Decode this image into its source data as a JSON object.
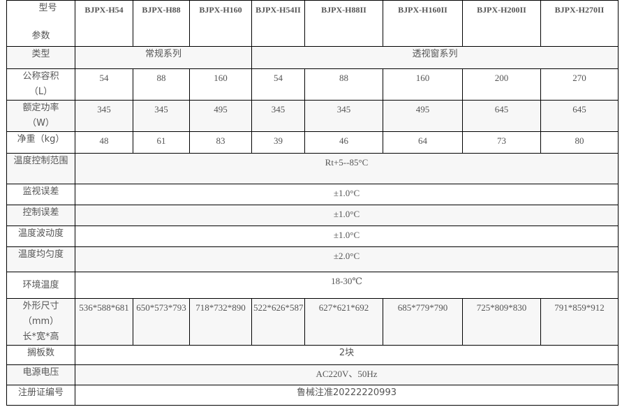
{
  "header": {
    "corner_top": "型号",
    "corner_bottom": "参数",
    "models": [
      "BJPX-H54",
      "BJPX-H88",
      "BJPX-H160",
      "BJPX-H54II",
      "BJPX-H88II",
      "BJPX-H160II",
      "BJPX-H200II",
      "BJPX-H270II"
    ]
  },
  "rows": {
    "type": {
      "label": "类型",
      "series_a": "常规系列",
      "series_b": "透视窗系列"
    },
    "volume": {
      "label": "公称容积",
      "unit": "（L）",
      "values": [
        "54",
        "88",
        "160",
        "54",
        "88",
        "160",
        "200",
        "270"
      ]
    },
    "power": {
      "label": "额定功率",
      "unit": "（W）",
      "values": [
        "345",
        "345",
        "495",
        "345",
        "345",
        "495",
        "645",
        "645"
      ]
    },
    "weight": {
      "label": "净重（kg）",
      "values": [
        "48",
        "61",
        "83",
        "39",
        "46",
        "64",
        "73",
        "80"
      ]
    },
    "temp_range": {
      "label": "温度控制范围",
      "value": "Rt+5--85°C"
    },
    "monitor_error": {
      "label": "监视误差",
      "value": "±1.0°C"
    },
    "control_error": {
      "label": "控制误差",
      "value": "±1.0°C"
    },
    "fluctuation": {
      "label": "温度波动度",
      "value": "±1.0°C"
    },
    "uniformity": {
      "label": "温度均匀度",
      "value": "±2.0°C"
    },
    "ambient": {
      "label": "环境温度",
      "value": "18-30℃"
    },
    "dimensions": {
      "label": "外形尺寸",
      "unit": "（mm）",
      "sub": "长*宽*高",
      "values": [
        "536*588*681",
        "650*573*793",
        "718*732*890",
        "522*626*587",
        "627*621*692",
        "685*779*790",
        "725*809*830",
        "791*859*912"
      ]
    },
    "shelves": {
      "label": "搁板数",
      "value": "2块"
    },
    "voltage": {
      "label": "电源电压",
      "value": "AC220V、50Hz"
    },
    "registration": {
      "label": "注册证编号",
      "value": "鲁械注准20222220993"
    }
  }
}
